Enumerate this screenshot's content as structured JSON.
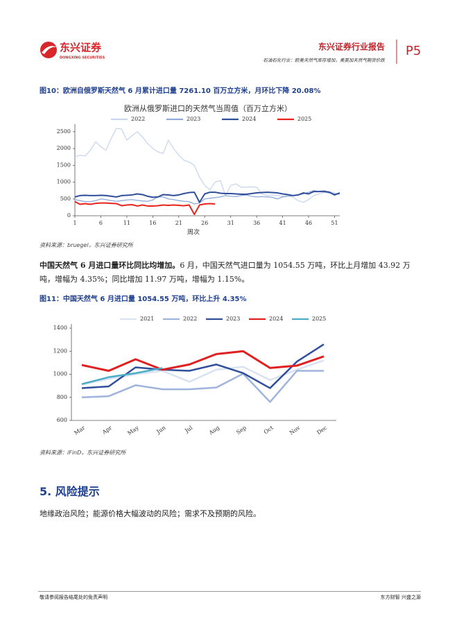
{
  "header": {
    "logo": "东兴证券",
    "logo_en": "DONGXING SECURITIES",
    "report_type": "东兴证券行业报告",
    "subtitle": "石油石化行业：欧美天然气库存增加，美英加天然气期货价跌",
    "page": "P5"
  },
  "figures": [
    {
      "caption": "图10：欧洲自俄罗斯天然气 6 月累计进口量 7261.10 百万立方米，月环比下降 20.08%",
      "source": "资料来源：bruegel，东兴证券研究所"
    },
    {
      "caption": "图11：中国天然气 6 月进口量 1054.55 万吨，环比上升 4.35%",
      "source": "资料来源：iFinD，东兴证券研究所"
    }
  ],
  "paragraph": {
    "lead": "中国天然气 6 月进口量环比同比均增加。",
    "text": "6 月，中国天然气进口量为 1054.55 万吨，环比上月增加 43.92 万吨，增幅为 4.35%；同比增加 11.97 万吨，增幅为 1.15%。"
  },
  "section": {
    "heading": "5. 风险提示",
    "text": "地缘政治风险；能源价格大幅波动的风险；需求不及预期的风险。"
  },
  "footer": {
    "left": "敬请参阅报告结尾处的免责声明",
    "right": "东方财智 兴盛之源"
  },
  "chart_data": [
    {
      "type": "line",
      "title": "欧洲从俄罗斯进口的天然气当周值（百万立方米）",
      "x_label": "周次",
      "x": [
        1,
        2,
        3,
        4,
        5,
        6,
        7,
        8,
        9,
        10,
        11,
        12,
        13,
        14,
        15,
        16,
        17,
        18,
        19,
        20,
        21,
        22,
        23,
        24,
        25,
        26,
        27,
        28,
        29,
        30,
        31,
        32,
        33,
        34,
        35,
        36,
        37,
        38,
        39,
        40,
        41,
        42,
        43,
        44,
        45,
        46,
        47,
        48,
        49,
        50,
        51,
        52
      ],
      "xlim": [
        1,
        52
      ],
      "xticks": [
        1,
        6,
        11,
        16,
        21,
        26,
        31,
        36,
        41,
        46,
        51
      ],
      "ylim": [
        0,
        2600
      ],
      "yticks": [
        0,
        500,
        1000,
        1500,
        2000,
        2500
      ],
      "series": [
        {
          "name": "2022",
          "color": "#c9d7ee",
          "values": [
            1750,
            1800,
            1780,
            1950,
            2200,
            2050,
            1950,
            2300,
            2600,
            2580,
            2250,
            2380,
            2500,
            2350,
            2150,
            2000,
            1900,
            1850,
            2250,
            2000,
            1800,
            1650,
            1600,
            1500,
            1150,
            900,
            780,
            1000,
            1050,
            600,
            900,
            950,
            850,
            850,
            860,
            850,
            650,
            600,
            620,
            600,
            580,
            600,
            550,
            450,
            400,
            480,
            600,
            650,
            700,
            720,
            680,
            650
          ]
        },
        {
          "name": "2023",
          "color": "#8fa9d8",
          "values": [
            480,
            450,
            420,
            420,
            450,
            500,
            480,
            450,
            430,
            450,
            470,
            480,
            460,
            440,
            430,
            470,
            560,
            560,
            500,
            480,
            450,
            430,
            420,
            350,
            380,
            500,
            520,
            540,
            560,
            600,
            580,
            570,
            600,
            620,
            580,
            560,
            570,
            560,
            550,
            500,
            560,
            580,
            600,
            620,
            650,
            700,
            750,
            720,
            700,
            680,
            650,
            640
          ]
        },
        {
          "name": "2024",
          "color": "#2e4e9a",
          "values": [
            560,
            600,
            610,
            600,
            600,
            610,
            600,
            580,
            560,
            600,
            610,
            620,
            650,
            630,
            580,
            550,
            560,
            630,
            620,
            600,
            620,
            660,
            690,
            700,
            400,
            650,
            700,
            700,
            670,
            660,
            660,
            650,
            640,
            640,
            660,
            680,
            690,
            700,
            690,
            680,
            650,
            630,
            600,
            620,
            680,
            650,
            720,
            720,
            730,
            700,
            620,
            680
          ]
        },
        {
          "name": "2025",
          "color": "#e8221c",
          "values": [
            420,
            340,
            360,
            340,
            370,
            380,
            380,
            370,
            360,
            300,
            320,
            330,
            290,
            320,
            290,
            290,
            300,
            320,
            310,
            320,
            310,
            300,
            320,
            40,
            320,
            350,
            360,
            350,
            null,
            null,
            null,
            null,
            null,
            null,
            null,
            null,
            null,
            null,
            null,
            null,
            null,
            null,
            null,
            null,
            null,
            null,
            null,
            null,
            null,
            null,
            null,
            null
          ]
        }
      ]
    },
    {
      "type": "line",
      "categories": [
        "Mar",
        "Apr",
        "May",
        "Jun",
        "Jul",
        "Aug",
        "Sep",
        "Oct",
        "Nov",
        "Dec"
      ],
      "ylim": [
        600,
        1400
      ],
      "yticks": [
        600,
        800,
        1000,
        1200,
        1400
      ],
      "series": [
        {
          "name": "2021",
          "color": "#d9e2f1",
          "values": [
            910,
            960,
            1000,
            1030,
            935,
            1040,
            1065,
            950,
            1040,
            1120
          ]
        },
        {
          "name": "2022",
          "color": "#9fb4dd",
          "values": [
            800,
            810,
            905,
            870,
            870,
            885,
            1005,
            760,
            1030,
            1030
          ]
        },
        {
          "name": "2023",
          "color": "#2f4f9c",
          "values": [
            880,
            895,
            1060,
            1040,
            1030,
            1085,
            1010,
            880,
            1110,
            1260
          ]
        },
        {
          "name": "2024",
          "color": "#e02020",
          "values": [
            1080,
            1030,
            1130,
            1040,
            1085,
            1175,
            1200,
            1055,
            1075,
            1155
          ]
        },
        {
          "name": "2025",
          "color": "#4bacc6",
          "values": [
            915,
            975,
            1010,
            1054.55,
            null,
            null,
            null,
            null,
            null,
            null
          ]
        }
      ]
    }
  ]
}
